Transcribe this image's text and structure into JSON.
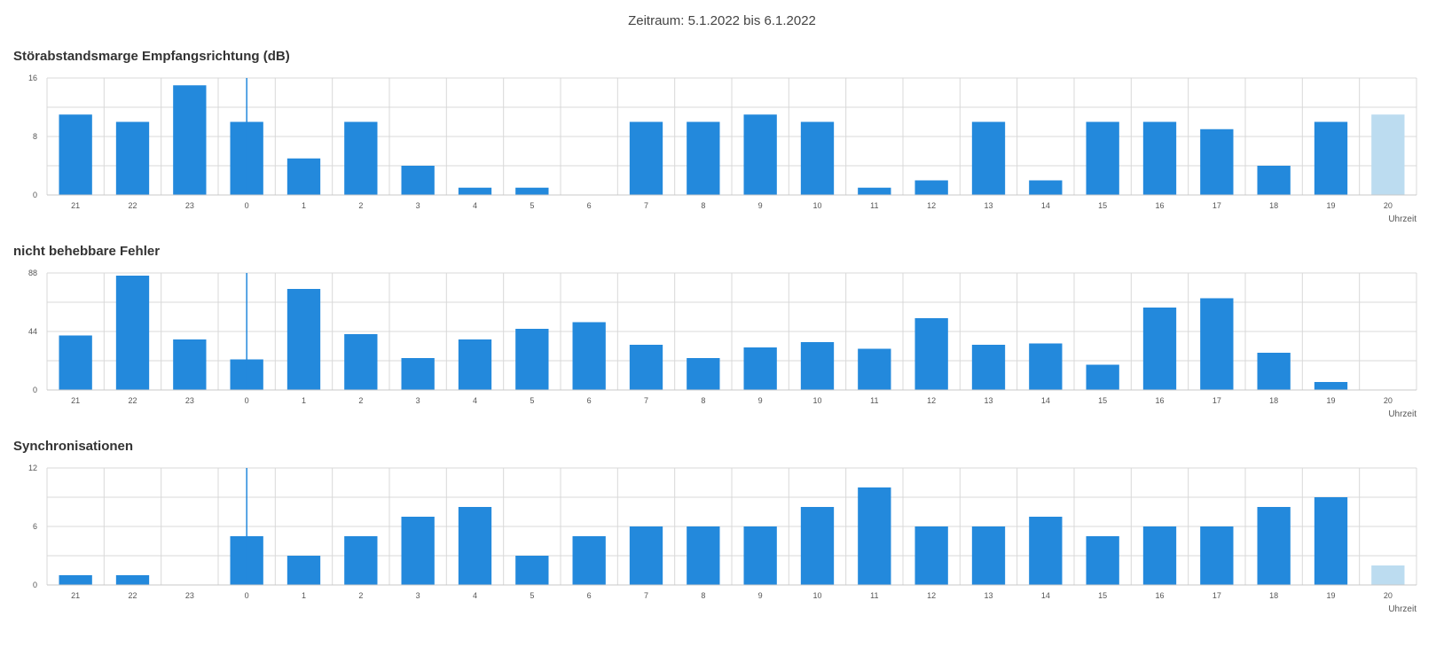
{
  "page_title": "Zeitraum: 5.1.2022 bis 6.1.2022",
  "colors": {
    "bar": "#2389dc",
    "bar_current": "#bcdcf0",
    "grid": "#d9d9d9",
    "marker": "#2389dc"
  },
  "chart_data": [
    {
      "type": "bar",
      "title": "Störabstandsmarge Empfangsrichtung (dB)",
      "xlabel": "Uhrzeit",
      "ylabel": "",
      "ylim": [
        0,
        16
      ],
      "yticks": [
        "0",
        "8",
        "16"
      ],
      "grid": true,
      "categories": [
        "21",
        "22",
        "23",
        "0",
        "1",
        "2",
        "3",
        "4",
        "5",
        "6",
        "7",
        "8",
        "9",
        "10",
        "11",
        "12",
        "13",
        "14",
        "15",
        "16",
        "17",
        "18",
        "19",
        "20"
      ],
      "values": [
        11,
        10,
        15,
        10,
        5,
        10,
        4,
        1,
        1,
        0,
        10,
        10,
        11,
        10,
        1,
        2,
        10,
        2,
        10,
        10,
        9,
        4,
        10,
        11
      ],
      "highlight_last": true,
      "marker_category": "0"
    },
    {
      "type": "bar",
      "title": "nicht behebbare Fehler",
      "xlabel": "Uhrzeit",
      "ylabel": "",
      "ylim": [
        0,
        88
      ],
      "yticks": [
        "0",
        "44",
        "88"
      ],
      "grid": true,
      "categories": [
        "21",
        "22",
        "23",
        "0",
        "1",
        "2",
        "3",
        "4",
        "5",
        "6",
        "7",
        "8",
        "9",
        "10",
        "11",
        "12",
        "13",
        "14",
        "15",
        "16",
        "17",
        "18",
        "19",
        "20"
      ],
      "values": [
        41,
        86,
        38,
        23,
        76,
        42,
        24,
        38,
        46,
        51,
        34,
        24,
        32,
        36,
        31,
        54,
        34,
        35,
        19,
        62,
        69,
        28,
        6,
        0
      ],
      "highlight_last": false,
      "marker_category": "0"
    },
    {
      "type": "bar",
      "title": "Synchronisationen",
      "xlabel": "Uhrzeit",
      "ylabel": "",
      "ylim": [
        0,
        12
      ],
      "yticks": [
        "0",
        "6",
        "12"
      ],
      "grid": true,
      "categories": [
        "21",
        "22",
        "23",
        "0",
        "1",
        "2",
        "3",
        "4",
        "5",
        "6",
        "7",
        "8",
        "9",
        "10",
        "11",
        "12",
        "13",
        "14",
        "15",
        "16",
        "17",
        "18",
        "19",
        "20"
      ],
      "values": [
        1,
        1,
        0,
        5,
        3,
        5,
        7,
        8,
        3,
        5,
        6,
        6,
        6,
        8,
        10,
        6,
        6,
        7,
        5,
        6,
        6,
        8,
        9,
        2
      ],
      "highlight_last": true,
      "marker_category": "0"
    }
  ]
}
